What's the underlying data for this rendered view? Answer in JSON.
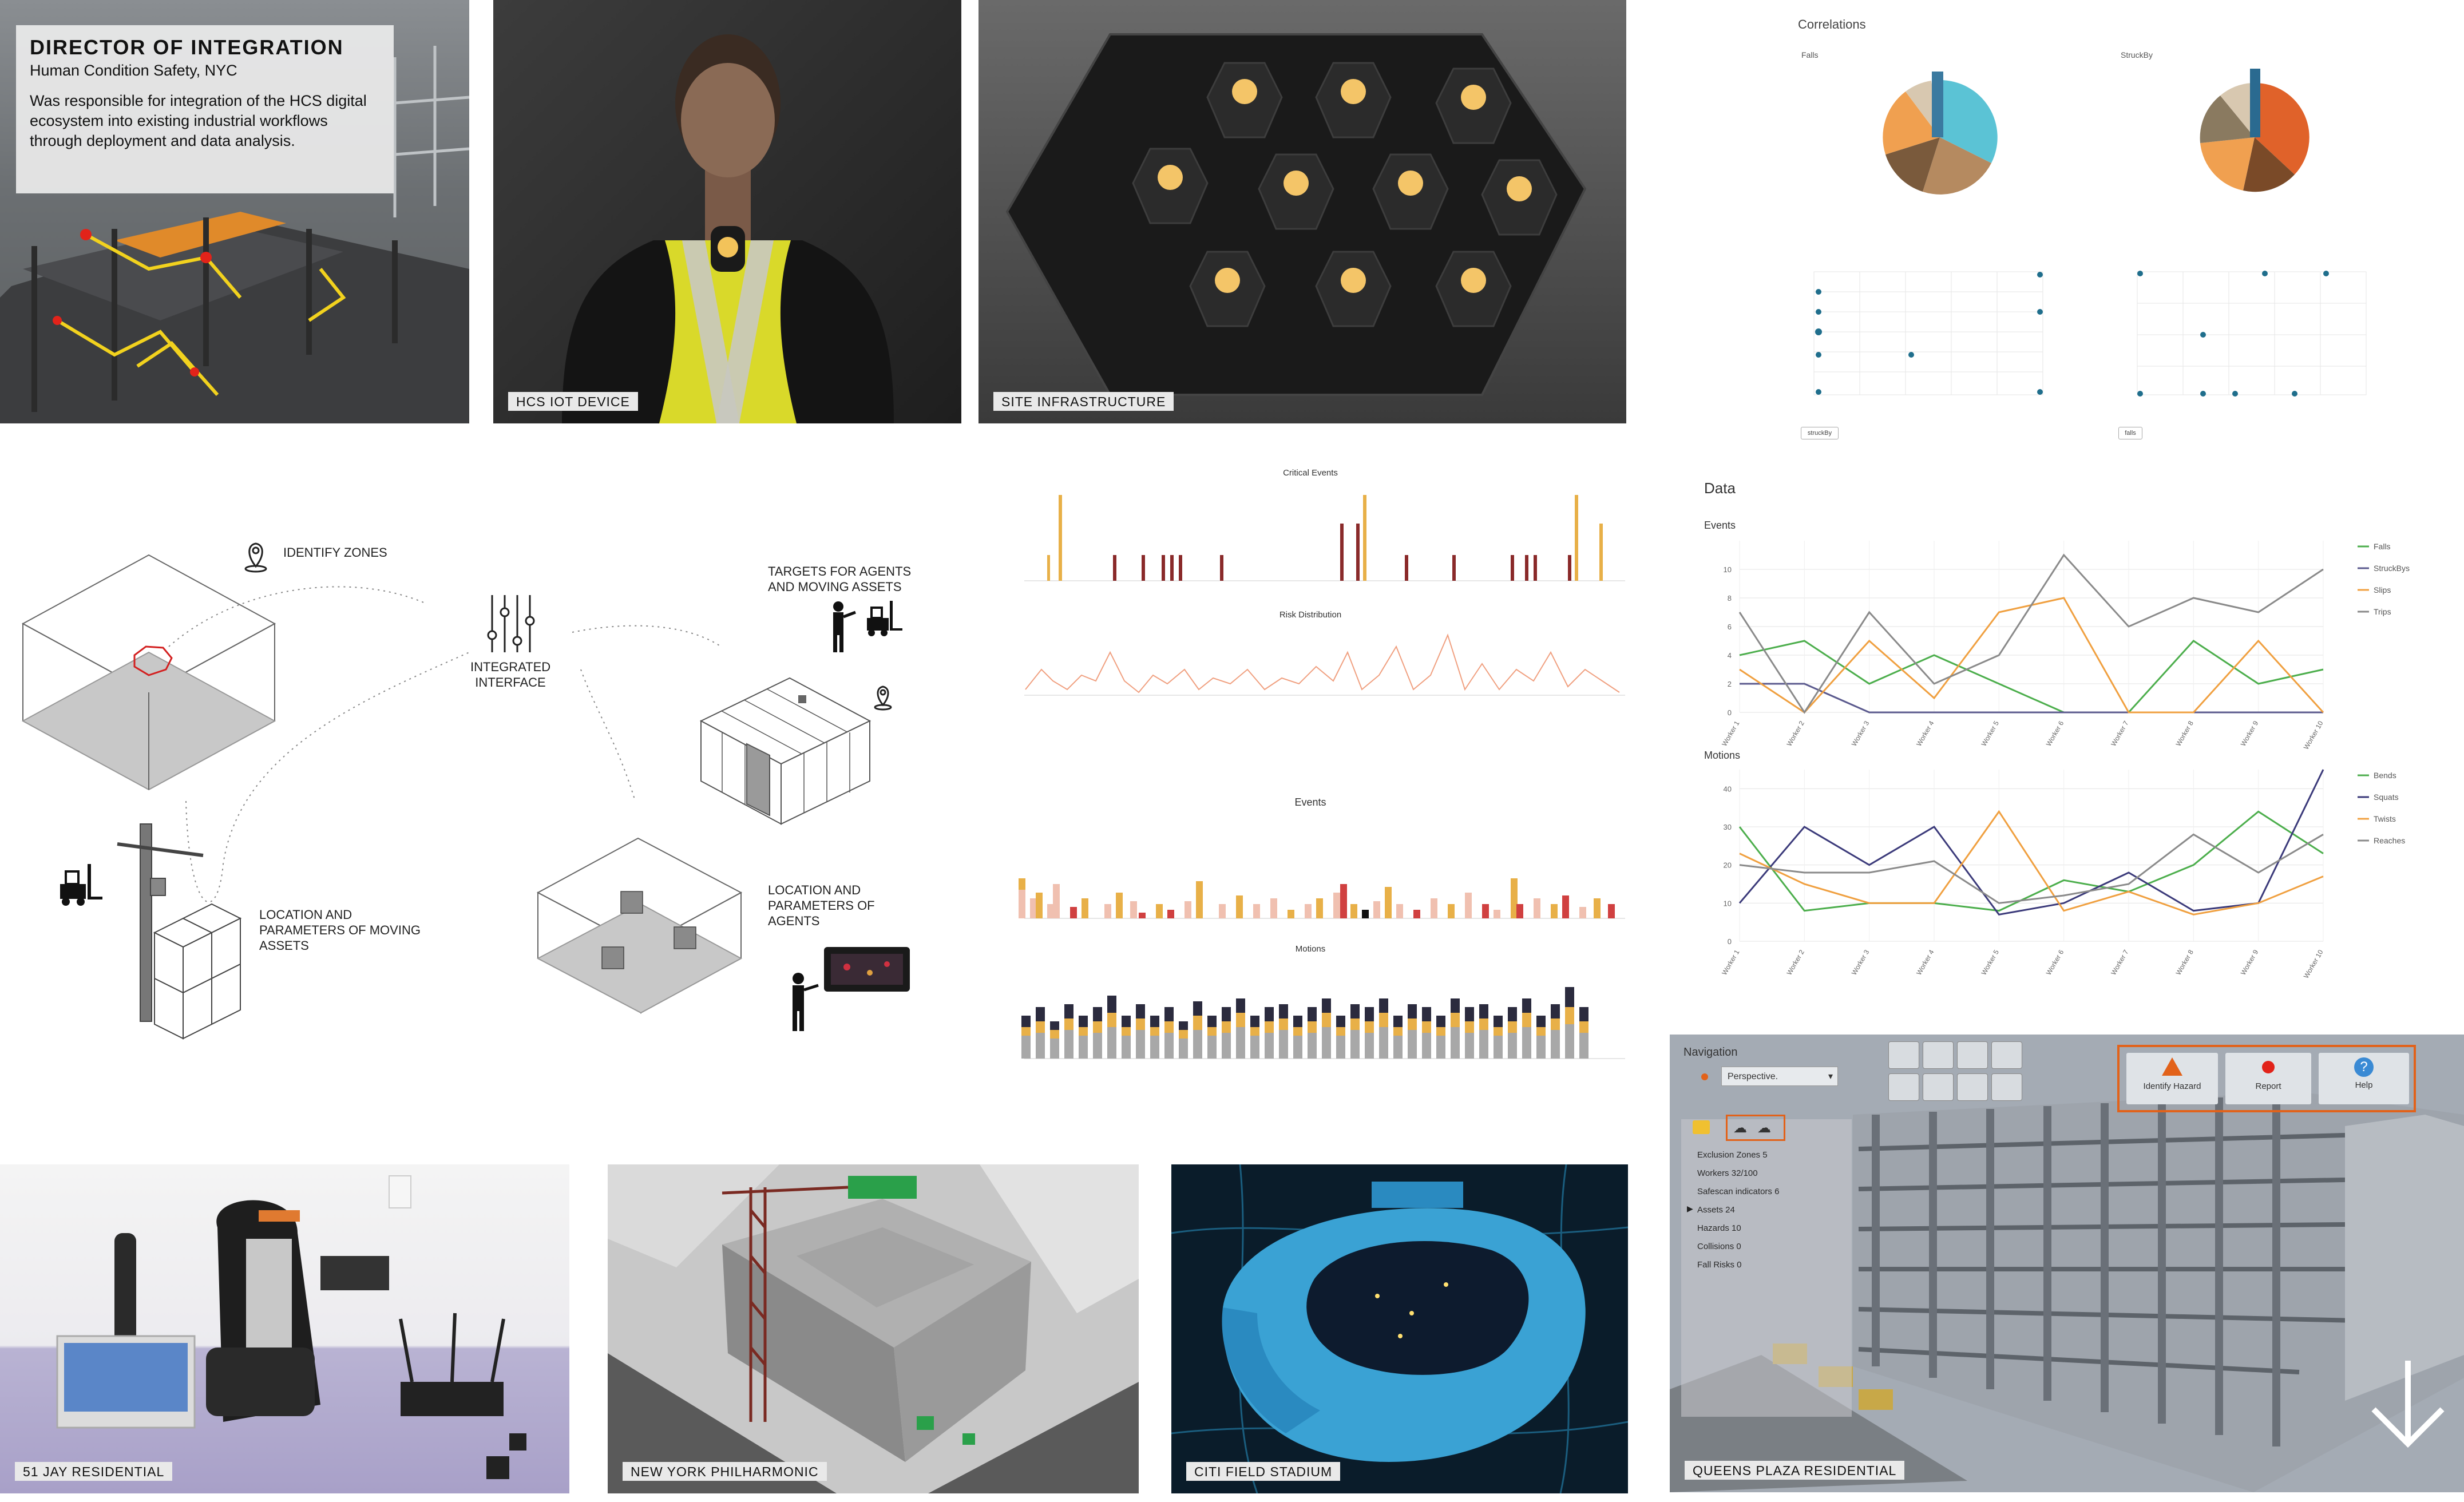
{
  "header": {
    "title": "DIRECTOR OF INTEGRATION",
    "company": "Human Condition Safety, NYC",
    "description": "Was responsible for integration of the HCS digital ecosystem into existing industrial workflows through deployment and data analysis."
  },
  "captions": {
    "hcs_iot_device": "HCS IOT DEVICE",
    "site_infrastructure": "SITE INFRASTRUCTURE",
    "jay_residential": "51 JAY RESIDENTIAL",
    "ny_philharmonic": "NEW YORK PHILHARMONIC",
    "citi_field": "CITI FIELD STADIUM",
    "queens_plaza": "QUEENS PLAZA RESIDENTIAL"
  },
  "diagram": {
    "identify_zones": "IDENTIFY ZONES",
    "integrated_interface_1": "INTEGRATED",
    "integrated_interface_2": "INTERFACE",
    "targets_1": "TARGETS FOR AGENTS",
    "targets_2": "AND MOVING ASSETS",
    "loc_assets_1": "LOCATION AND",
    "loc_assets_2": "PARAMETERS OF MOVING",
    "loc_assets_3": "ASSETS",
    "loc_agents_1": "LOCATION AND",
    "loc_agents_2": "PARAMETERS OF",
    "loc_agents_3": "AGENTS"
  },
  "correlations": {
    "title": "Correlations",
    "left_label": "Falls",
    "right_label": "StruckBy",
    "left_button": "struckBy",
    "right_button": "falls"
  },
  "small_charts": {
    "critical_events": "Critical Events",
    "risk_distribution": "Risk Distribution",
    "events": "Events",
    "motions": "Motions"
  },
  "chart_data": [
    {
      "type": "line",
      "title": "Events",
      "section_title": "Data",
      "categories": [
        "Worker 1",
        "Worker 2",
        "Worker 3",
        "Worker 4",
        "Worker 5",
        "Worker 6",
        "Worker 7",
        "Worker 8",
        "Worker 9",
        "Worker 10"
      ],
      "ylim": [
        0,
        12
      ],
      "yticks": [
        0,
        2,
        4,
        6,
        8,
        10
      ],
      "series": [
        {
          "name": "Falls",
          "color": "#4cae4c",
          "values": [
            4,
            5,
            2,
            4,
            2,
            0,
            0,
            5,
            2,
            3
          ]
        },
        {
          "name": "StruckBys",
          "color": "#5b5a8e",
          "values": [
            2,
            2,
            0,
            0,
            0,
            0,
            0,
            0,
            0,
            0
          ]
        },
        {
          "name": "Slips",
          "color": "#f0a040",
          "values": [
            3,
            0,
            5,
            1,
            7,
            8,
            0,
            0,
            5,
            0
          ]
        },
        {
          "name": "Trips",
          "color": "#8a8a8a",
          "values": [
            7,
            0,
            7,
            2,
            4,
            11,
            6,
            8,
            7,
            10
          ]
        }
      ]
    },
    {
      "type": "line",
      "title": "Motions",
      "categories": [
        "Worker 1",
        "Worker 2",
        "Worker 3",
        "Worker 4",
        "Worker 5",
        "Worker 6",
        "Worker 7",
        "Worker 8",
        "Worker 9",
        "Worker 10"
      ],
      "ylim": [
        0,
        45
      ],
      "yticks": [
        0,
        10,
        20,
        30,
        40
      ],
      "series": [
        {
          "name": "Bends",
          "color": "#4cae4c",
          "values": [
            30,
            8,
            10,
            10,
            8,
            16,
            13,
            20,
            34,
            23
          ]
        },
        {
          "name": "Squats",
          "color": "#3b3a7a",
          "values": [
            10,
            30,
            20,
            30,
            7,
            10,
            18,
            8,
            10,
            45
          ]
        },
        {
          "name": "Twists",
          "color": "#f0a040",
          "values": [
            23,
            15,
            10,
            10,
            34,
            8,
            13,
            7,
            10,
            17
          ]
        },
        {
          "name": "Reaches",
          "color": "#8a8a8a",
          "values": [
            20,
            18,
            18,
            21,
            10,
            12,
            15,
            28,
            18,
            28
          ]
        }
      ]
    }
  ],
  "navigation": {
    "title": "Navigation",
    "view_select": "Perspective.",
    "identify_hazard": "Identify Hazard",
    "report": "Report",
    "help": "Help",
    "items": [
      "Exclusion Zones 5",
      "Workers 32/100",
      "Safescan indicators 6",
      "Assets 24",
      "Hazards 10",
      "Collisions 0",
      "Fall Risks 0"
    ]
  }
}
